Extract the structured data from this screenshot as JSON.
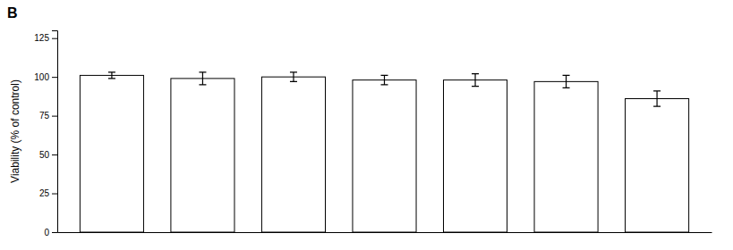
{
  "chart_data": {
    "type": "bar",
    "annotations": [
      "B"
    ],
    "ylabel": "Viability (% of control)",
    "categories": [
      null,
      null,
      null,
      null,
      null,
      null,
      null
    ],
    "values": [
      101,
      99,
      100,
      98,
      98,
      97,
      86
    ],
    "errors": [
      2,
      4,
      3,
      3,
      4,
      4,
      5
    ],
    "color": "white",
    "ylim": [
      0,
      130
    ],
    "yticks": [
      0,
      25,
      50,
      75,
      100,
      125
    ],
    "tick_labels": "y",
    "grid": false
  }
}
